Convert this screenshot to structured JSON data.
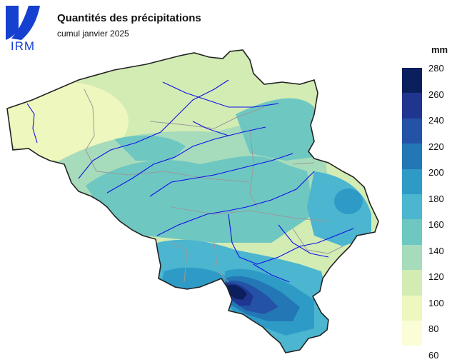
{
  "logo": {
    "text": "IRM"
  },
  "header": {
    "title": "Quantités des précipitations",
    "subtitle": "cumul janvier 2025"
  },
  "legend": {
    "unit": "mm",
    "ticks": [
      "280",
      "260",
      "240",
      "220",
      "200",
      "180",
      "160",
      "140",
      "120",
      "100",
      "80",
      "60"
    ],
    "colors": [
      "#0b1f5c",
      "#1f3590",
      "#2452a6",
      "#2377b5",
      "#2e9bc7",
      "#4cb5cf",
      "#6fc7c2",
      "#a6dcbb",
      "#d3ecb4",
      "#eef7bd",
      "#fbfdd6"
    ]
  },
  "map": {
    "region": "Belgique",
    "colors": {
      "border": "#222222",
      "rivers": "#1010e6",
      "provinces": "#9a9a9a",
      "logo_blue": "#1540d0"
    }
  }
}
